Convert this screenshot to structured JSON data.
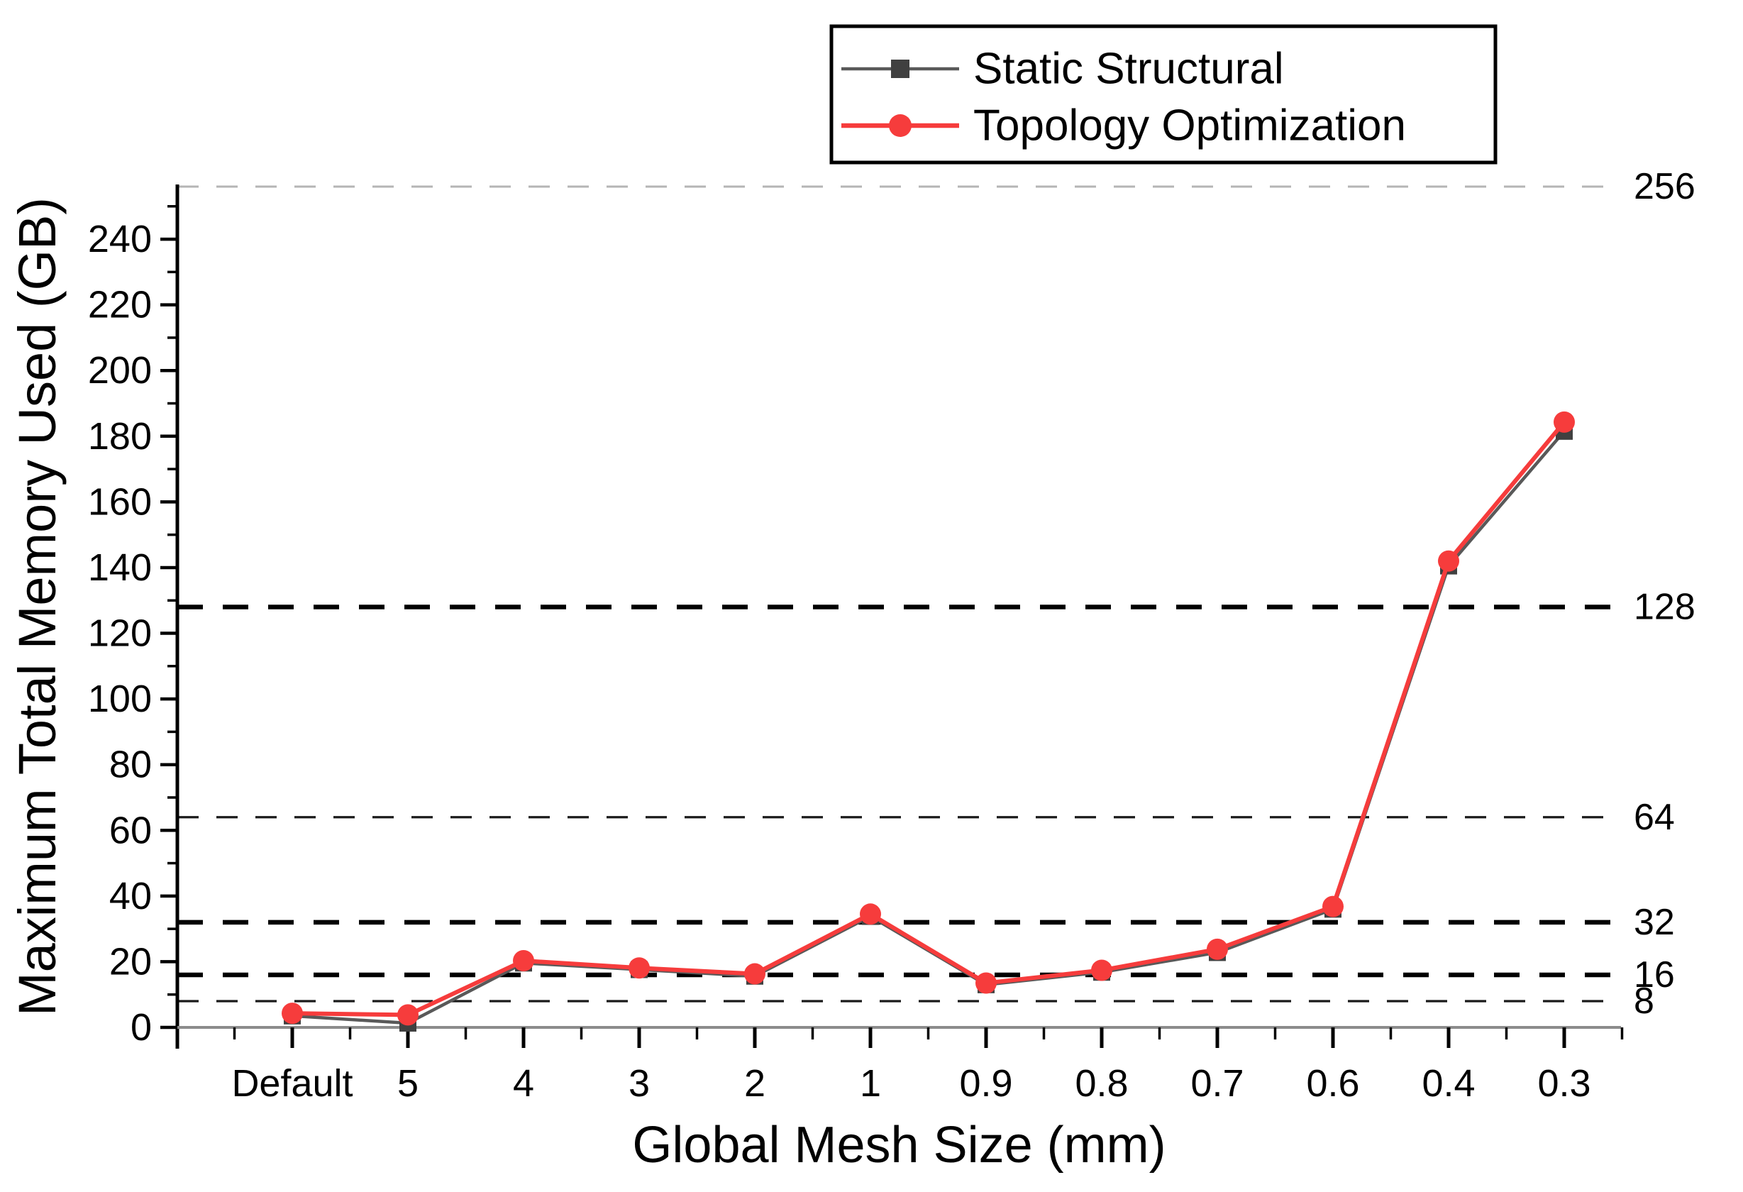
{
  "figure": {
    "background": "#ffffff",
    "x_axis_label": "Global Mesh Size (mm)",
    "y_axis_label": "Maximum Total Memory Used (GB)"
  },
  "legend": {
    "position": "top-center",
    "items": [
      {
        "label": "Static Structural",
        "line_color": "#595959",
        "marker": "square",
        "marker_color": "#404040"
      },
      {
        "label": "Topology Optimization",
        "line_color": "#f63c3c",
        "marker": "circle",
        "marker_color": "#f63c3c"
      }
    ]
  },
  "chart_data": {
    "type": "line",
    "title": "",
    "xlabel": "Global Mesh Size (mm)",
    "ylabel": "Maximum Total Memory Used (GB)",
    "categories": [
      "Default",
      "5",
      "4",
      "3",
      "2",
      "1",
      "0.9",
      "0.8",
      "0.7",
      "0.6",
      "0.4",
      "0.3"
    ],
    "series": [
      {
        "name": "Static Structural",
        "color": "#595959",
        "marker": "square",
        "marker_color": "#404040",
        "values": [
          3.5,
          1.3,
          19.6,
          17.6,
          15.6,
          33.8,
          13.0,
          16.8,
          22.8,
          36.0,
          140.5,
          181.5
        ]
      },
      {
        "name": "Topology Optimization",
        "color": "#f63c3c",
        "marker": "circle",
        "marker_color": "#f63c3c",
        "values": [
          4.3,
          3.8,
          20.3,
          18.1,
          16.3,
          34.5,
          13.5,
          17.4,
          23.8,
          36.8,
          142.0,
          184.3
        ]
      }
    ],
    "ylim": [
      0,
      256
    ],
    "y_tick_step_major": 20,
    "y_tick_step_minor": 10,
    "y_tick_labels": [
      "0",
      "20",
      "40",
      "60",
      "80",
      "100",
      "120",
      "140",
      "160",
      "180",
      "200",
      "220",
      "240"
    ],
    "reference_lines": [
      {
        "value": 256,
        "label": "256",
        "style": "light"
      },
      {
        "value": 128,
        "label": "128",
        "style": "bold"
      },
      {
        "value": 64,
        "label": "64",
        "style": "thin"
      },
      {
        "value": 32,
        "label": "32",
        "style": "bold"
      },
      {
        "value": 16,
        "label": "16",
        "style": "bold"
      },
      {
        "value": 8,
        "label": "8",
        "style": "thin"
      }
    ],
    "grid": "horizontal dashed reference lines only",
    "legend_position": "top-center"
  }
}
